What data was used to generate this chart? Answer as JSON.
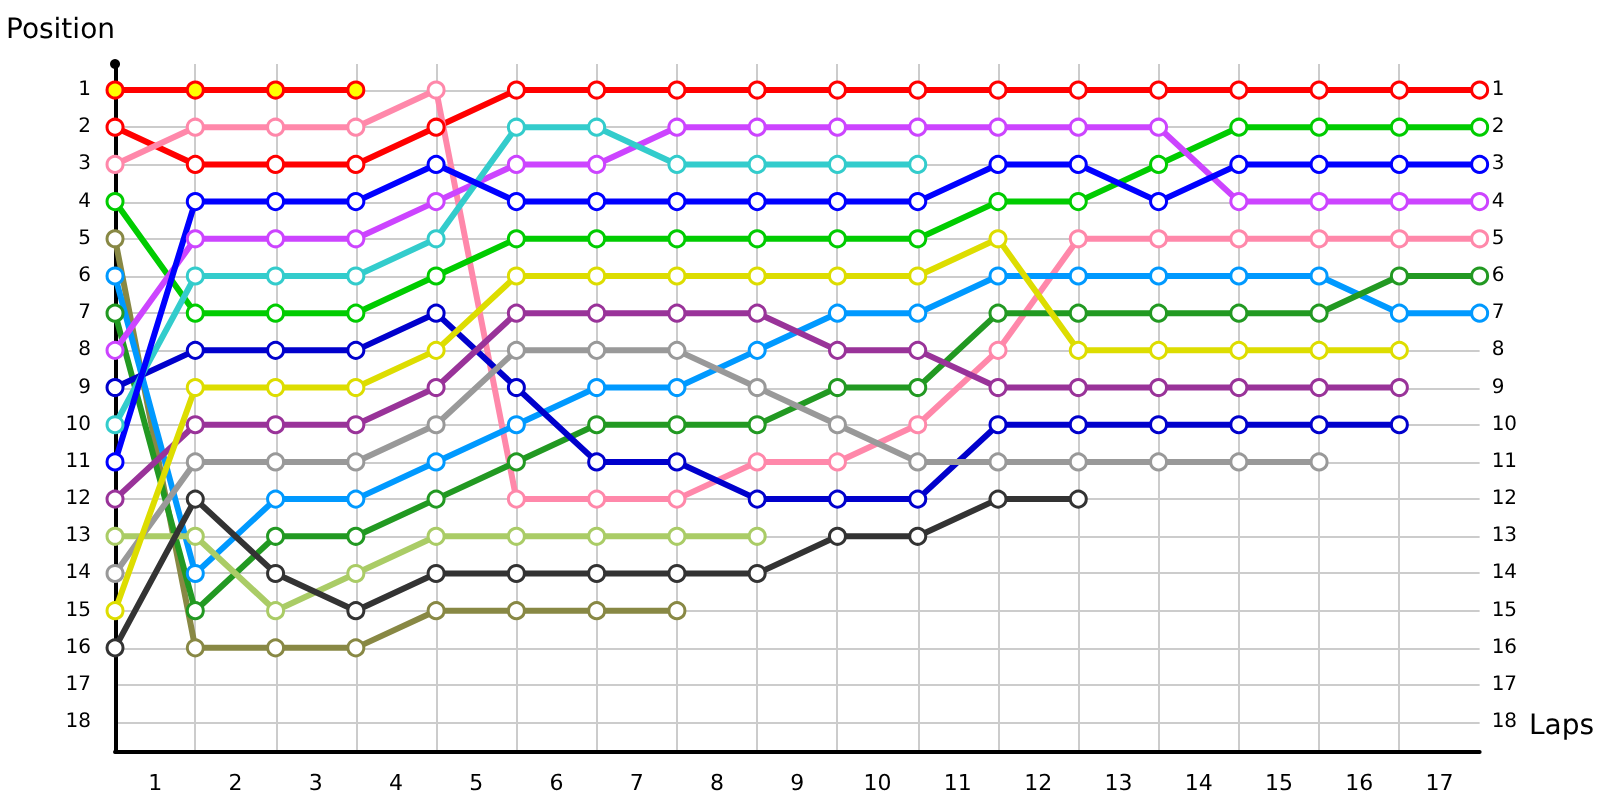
{
  "chart_data": {
    "type": "line",
    "xlabel": "Laps",
    "ylabel": "Position",
    "x": [
      0,
      1,
      2,
      3,
      4,
      5,
      6,
      7,
      8,
      9,
      10,
      11,
      12,
      13,
      14,
      15,
      16,
      17
    ],
    "xlim": [
      0,
      17
    ],
    "xticks": [
      {
        "value": 0.5,
        "label": "1"
      },
      {
        "value": 1,
        "label": null
      },
      {
        "value": 1.5,
        "label": "2"
      },
      {
        "value": 2,
        "label": null
      },
      {
        "value": 2.5,
        "label": "3"
      },
      {
        "value": 3,
        "label": null
      },
      {
        "value": 3.5,
        "label": "4"
      },
      {
        "value": 4,
        "label": null
      },
      {
        "value": 4.5,
        "label": "5"
      },
      {
        "value": 5,
        "label": null
      },
      {
        "value": 5.5,
        "label": "6"
      },
      {
        "value": 6,
        "label": null
      },
      {
        "value": 6.5,
        "label": "7"
      },
      {
        "value": 7,
        "label": null
      },
      {
        "value": 7.5,
        "label": "8"
      },
      {
        "value": 8,
        "label": null
      },
      {
        "value": 8.5,
        "label": "9"
      },
      {
        "value": 9,
        "label": null
      },
      {
        "value": 9.5,
        "label": "10"
      },
      {
        "value": 10,
        "label": null
      },
      {
        "value": 10.5,
        "label": "11"
      },
      {
        "value": 11,
        "label": null
      },
      {
        "value": 11.5,
        "label": "12"
      },
      {
        "value": 12,
        "label": null
      },
      {
        "value": 12.5,
        "label": "13"
      },
      {
        "value": 13,
        "label": null
      },
      {
        "value": 13.5,
        "label": "14"
      },
      {
        "value": 14,
        "label": null
      },
      {
        "value": 14.5,
        "label": "15"
      },
      {
        "value": 15,
        "label": null
      },
      {
        "value": 15.5,
        "label": "16"
      },
      {
        "value": 16,
        "label": null
      },
      {
        "value": 16.5,
        "label": "17"
      }
    ],
    "ylim": [
      18.8,
      0.3
    ],
    "yticks": [
      1,
      2,
      3,
      4,
      5,
      6,
      7,
      8,
      9,
      10,
      11,
      12,
      13,
      14,
      15,
      16,
      17,
      18
    ],
    "y2lim": [
      18.8,
      0.3
    ],
    "y2ticks": [
      1,
      2,
      3,
      4,
      5,
      6,
      7,
      8,
      9,
      10,
      11,
      12,
      13,
      14,
      15,
      16,
      17,
      18
    ],
    "grid": true,
    "marker": "circle",
    "line_style": "solid",
    "series": [
      {
        "color": "#ff0000",
        "colors": [
          "#ffff00",
          "#ffff00",
          "#ffff00",
          "#ffff00",
          null,
          null,
          null,
          null,
          null,
          null,
          null,
          null,
          null,
          null,
          null,
          null,
          null,
          null
        ],
        "values": [
          1,
          1,
          1,
          1,
          null,
          null,
          null,
          null,
          null,
          null,
          null,
          null,
          null,
          null,
          null,
          null,
          null,
          null
        ]
      },
      {
        "color": "#ff0000",
        "values": [
          2,
          3,
          3,
          3,
          2,
          1,
          1,
          1,
          1,
          1,
          1,
          1,
          1,
          1,
          1,
          1,
          1,
          1
        ]
      },
      {
        "color": "#ff88aa",
        "values": [
          3,
          2,
          2,
          2,
          1,
          12,
          12,
          12,
          11,
          11,
          10,
          8,
          5,
          5,
          5,
          5,
          5,
          5
        ]
      },
      {
        "color": "#00cc00",
        "values": [
          4,
          7,
          7,
          7,
          6,
          5,
          5,
          5,
          5,
          5,
          5,
          4,
          4,
          3,
          2,
          2,
          2,
          2
        ]
      },
      {
        "color": "#888844",
        "values": [
          5,
          16,
          16,
          16,
          15,
          15,
          15,
          15,
          null,
          null,
          null,
          null,
          null,
          null,
          null,
          null,
          null,
          null
        ]
      },
      {
        "color": "#0099ff",
        "values": [
          6,
          14,
          12,
          12,
          11,
          10,
          9,
          9,
          8,
          7,
          7,
          6,
          6,
          6,
          6,
          6,
          7,
          7
        ]
      },
      {
        "color": "#229922",
        "values": [
          7,
          15,
          13,
          13,
          12,
          11,
          10,
          10,
          10,
          9,
          9,
          7,
          7,
          7,
          7,
          7,
          6,
          6
        ]
      },
      {
        "color": "#cc44ff",
        "values": [
          8,
          5,
          5,
          5,
          4,
          3,
          3,
          2,
          2,
          2,
          2,
          2,
          2,
          2,
          4,
          4,
          4,
          4
        ]
      },
      {
        "color": "#0000cc",
        "values": [
          9,
          8,
          8,
          8,
          7,
          9,
          11,
          11,
          12,
          12,
          12,
          10,
          10,
          10,
          10,
          10,
          10,
          null
        ]
      },
      {
        "color": "#33cccc",
        "values": [
          10,
          6,
          6,
          6,
          5,
          2,
          2,
          3,
          3,
          3,
          3,
          null,
          null,
          null,
          null,
          null,
          null,
          null
        ]
      },
      {
        "color": "#0000ff",
        "values": [
          11,
          4,
          4,
          4,
          3,
          4,
          4,
          4,
          4,
          4,
          4,
          3,
          3,
          4,
          3,
          3,
          3,
          3
        ]
      },
      {
        "color": "#993399",
        "values": [
          12,
          10,
          10,
          10,
          9,
          7,
          7,
          7,
          7,
          8,
          8,
          9,
          9,
          9,
          9,
          9,
          9,
          null
        ]
      },
      {
        "color": "#aacc66",
        "values": [
          13,
          13,
          15,
          14,
          13,
          13,
          13,
          13,
          13,
          null,
          null,
          null,
          null,
          null,
          null,
          null,
          null,
          null
        ]
      },
      {
        "color": "#999999",
        "values": [
          14,
          11,
          11,
          11,
          10,
          8,
          8,
          8,
          9,
          10,
          11,
          11,
          11,
          11,
          11,
          11,
          null,
          null
        ]
      },
      {
        "color": "#dddd00",
        "values": [
          15,
          9,
          9,
          9,
          8,
          6,
          6,
          6,
          6,
          6,
          6,
          5,
          8,
          8,
          8,
          8,
          8,
          null
        ]
      },
      {
        "color": "#333333",
        "values": [
          16,
          12,
          14,
          15,
          14,
          14,
          14,
          14,
          14,
          13,
          13,
          12,
          12,
          null,
          null,
          null,
          null,
          null
        ]
      }
    ]
  }
}
